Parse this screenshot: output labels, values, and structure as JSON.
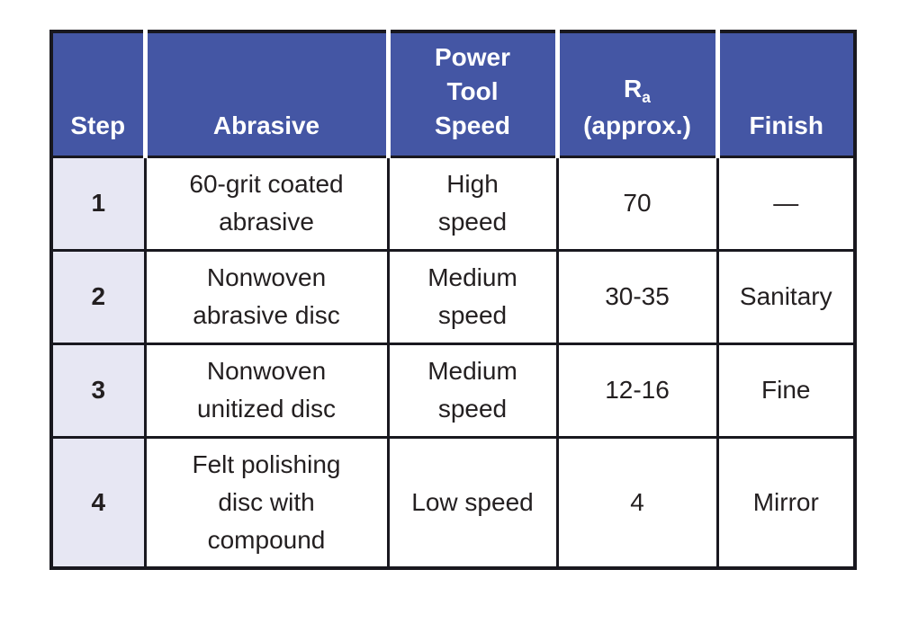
{
  "table": {
    "headers": {
      "step": "Step",
      "abrasive": "Abrasive",
      "speed": "Power\nTool\nSpeed",
      "ra_main": "R",
      "ra_sub": "a",
      "ra_suffix": "(approx.)",
      "finish": "Finish"
    },
    "rows": [
      {
        "step": "1",
        "abrasive": "60-grit coated\nabrasive",
        "speed": "High\nspeed",
        "ra": "70",
        "finish": "—"
      },
      {
        "step": "2",
        "abrasive": "Nonwoven\nabrasive disc",
        "speed": "Medium\nspeed",
        "ra": "30-35",
        "finish": "Sanitary"
      },
      {
        "step": "3",
        "abrasive": "Nonwoven\nunitized disc",
        "speed": "Medium\nspeed",
        "ra": "12-16",
        "finish": "Fine"
      },
      {
        "step": "4",
        "abrasive": "Felt polishing\ndisc with\ncompound",
        "speed": "Low speed",
        "ra": "4",
        "finish": "Mirror"
      }
    ],
    "colors": {
      "header_bg": "#4456a4",
      "header_text": "#ffffff",
      "step_column_bg": "#e7e7f3",
      "border": "#19181f",
      "body_text": "#231f20"
    }
  }
}
